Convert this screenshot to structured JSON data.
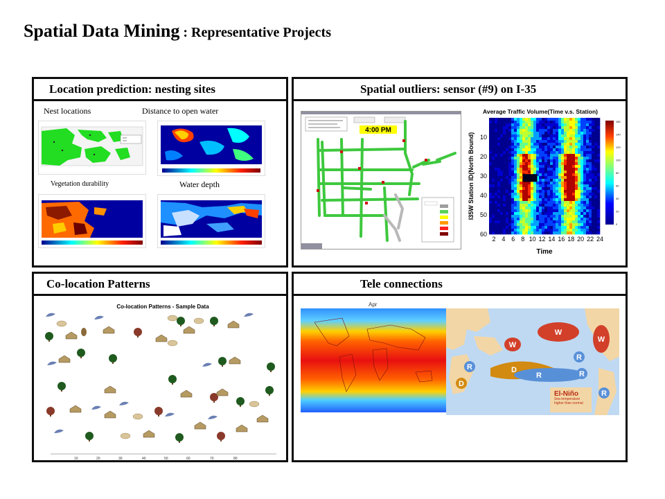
{
  "title": {
    "main": "Spatial Data Mining",
    "sub": " : Representative Projects"
  },
  "panels": {
    "location": {
      "header": "Location prediction: nesting sites",
      "labels": {
        "nest": "Nest locations",
        "distance": "Distance to open water",
        "vegetation": "Vegetation durability",
        "water": "Water depth"
      }
    },
    "outliers": {
      "header": "Spatial outliers:  sensor (#9) on I-35",
      "clock": "4:00 PM",
      "chart_title": "Average Traffic Volume(Time v.s. Station)",
      "ylabel": "I35W Station ID(North Bound)",
      "xlabel": "Time"
    },
    "colocation": {
      "header": "Co-location Patterns",
      "plot_title": "Co-location Patterns - Sample Data"
    },
    "tele": {
      "header": "Tele connections",
      "month": "Apr",
      "elnino_title": "El-Niño",
      "elnino_sub": "Sea temperature higher than normal"
    }
  },
  "chart_data": [
    {
      "type": "heatmap",
      "title": "Average Traffic Volume(Time v.s. Station)",
      "xlabel": "Time",
      "ylabel": "I35W Station ID(North Bound)",
      "x_ticks": [
        "2",
        "4",
        "6",
        "8",
        "10",
        "12",
        "14",
        "16",
        "18",
        "20",
        "22",
        "24"
      ],
      "y_ticks": [
        "10",
        "20",
        "30",
        "40",
        "50",
        "60"
      ],
      "colorbar_ticks": [
        "160",
        "140",
        "120",
        "100",
        "80",
        "60",
        "40",
        "20",
        "0"
      ],
      "xlim": [
        1,
        24
      ],
      "ylim": [
        0,
        60
      ]
    }
  ]
}
